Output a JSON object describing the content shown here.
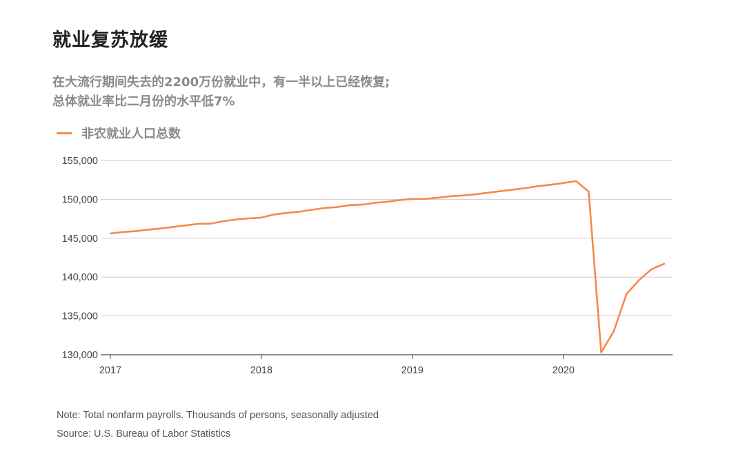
{
  "title": "就业复苏放缓",
  "subtitle": {
    "line1": "在大流行期间失去的2200万份就业中，有一半以上已经恢复;",
    "line2": "总体就业率比二月份的水平低7%"
  },
  "footer": {
    "note": "Note: Total nonfarm payrolls. Thousands of persons, seasonally adjusted",
    "source": "Source: U.S. Bureau of Labor Statistics"
  },
  "colors": {
    "line": "#f5894a",
    "grid": "#cccccc",
    "axis": "#444444",
    "tick_text": "#444444"
  },
  "chart_data": {
    "type": "line",
    "title": "就业复苏放缓",
    "xlabel": "",
    "ylabel": "",
    "legend": "top-left",
    "grid": true,
    "ylim": [
      130000,
      155000
    ],
    "xlim": [
      2017.0,
      2020.75
    ],
    "yticks": [
      130000,
      135000,
      140000,
      145000,
      150000,
      155000
    ],
    "ytick_labels": [
      "130,000",
      "135,000",
      "140,000",
      "145,000",
      "150,000",
      "155,000"
    ],
    "xticks": [
      2017,
      2018,
      2019,
      2020
    ],
    "xtick_labels": [
      "2017",
      "2018",
      "2019",
      "2020"
    ],
    "series": [
      {
        "name": "非农就业人口总数",
        "x": [
          2017.0,
          2017.083,
          2017.167,
          2017.25,
          2017.333,
          2017.417,
          2017.5,
          2017.583,
          2017.667,
          2017.75,
          2017.833,
          2017.917,
          2018.0,
          2018.083,
          2018.167,
          2018.25,
          2018.333,
          2018.417,
          2018.5,
          2018.583,
          2018.667,
          2018.75,
          2018.833,
          2018.917,
          2019.0,
          2019.083,
          2019.167,
          2019.25,
          2019.333,
          2019.417,
          2019.5,
          2019.583,
          2019.667,
          2019.75,
          2019.833,
          2019.917,
          2020.0,
          2020.083,
          2020.167,
          2020.25,
          2020.333,
          2020.417,
          2020.5,
          2020.583,
          2020.667
        ],
        "values": [
          145600,
          145800,
          145900,
          146100,
          146250,
          146450,
          146650,
          146850,
          146880,
          147200,
          147400,
          147550,
          147650,
          148050,
          148250,
          148400,
          148650,
          148880,
          149000,
          149250,
          149320,
          149550,
          149700,
          149900,
          150050,
          150050,
          150200,
          150400,
          150500,
          150650,
          150850,
          151050,
          151250,
          151450,
          151700,
          151880,
          152100,
          152350,
          151000,
          130300,
          133000,
          137800,
          139600,
          141000,
          141700
        ]
      }
    ]
  }
}
